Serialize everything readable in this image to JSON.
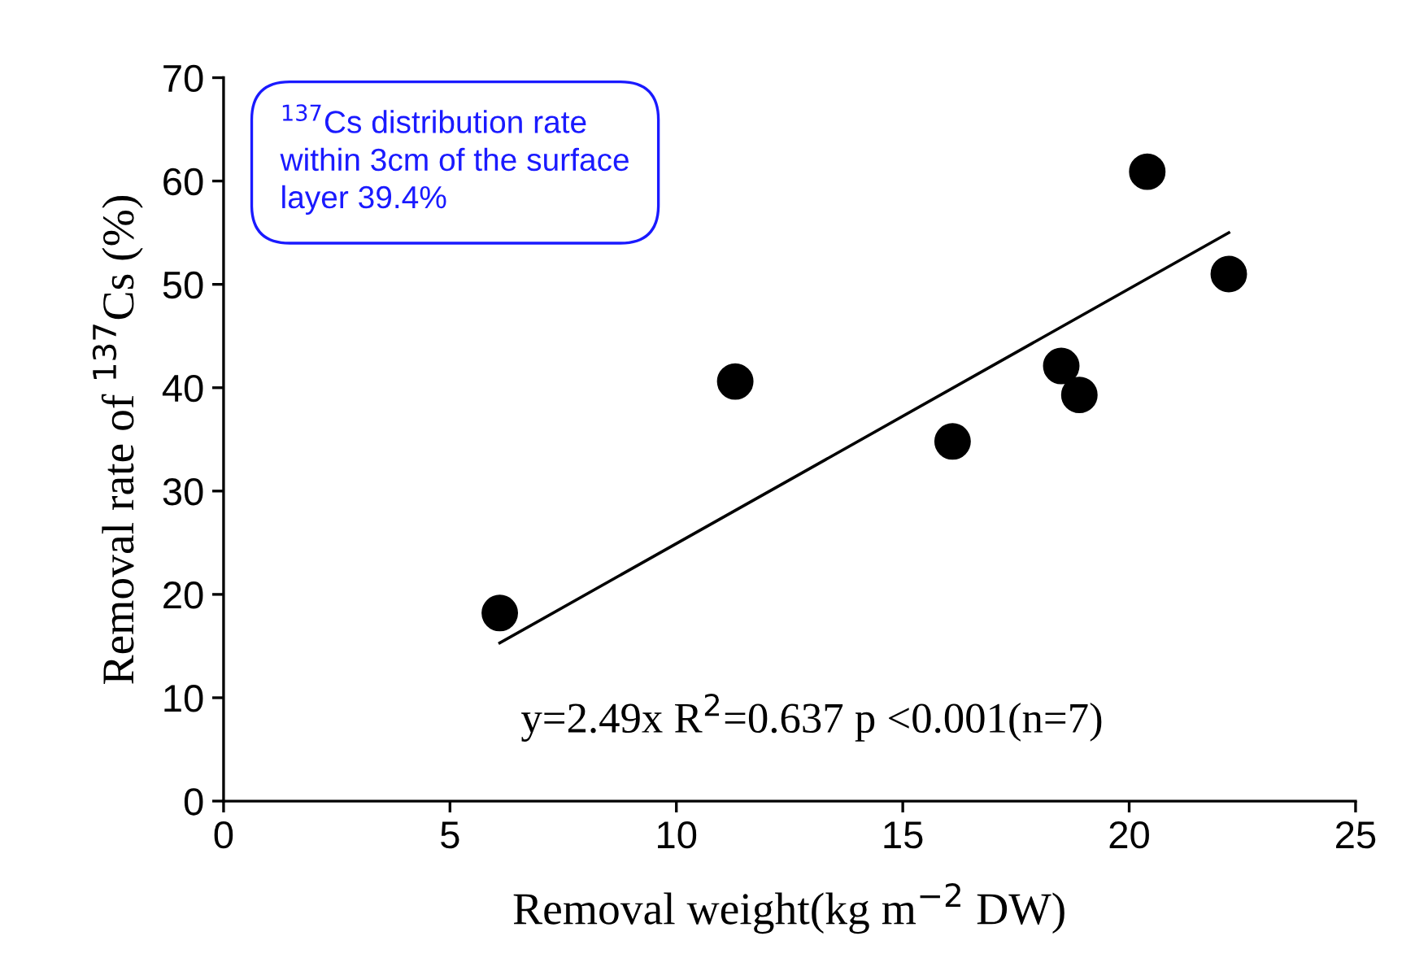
{
  "chart_data": {
    "type": "scatter",
    "xlabel": "Removal weight(kg m$^{−2}$ DW)",
    "ylabel": "Removal rate of $^{137}$Cs (%)",
    "xlim": [
      0,
      25
    ],
    "xticks": [
      0,
      5,
      10,
      15,
      20,
      25
    ],
    "ylim": [
      0,
      70
    ],
    "yticks": [
      0,
      10,
      20,
      30,
      40,
      50,
      60,
      70
    ],
    "grid": false,
    "series": [
      {
        "marker": "circle",
        "color": "#000000",
        "x": [
          6.1,
          11.3,
          16.1,
          18.5,
          18.9,
          20.4,
          22.2
        ],
        "values": [
          18.2,
          40.6,
          34.8,
          42.1,
          39.3,
          60.9,
          51.0
        ]
      },
      {
        "type": "line",
        "color": "#000000",
        "x": [
          6.1,
          22.2
        ],
        "values": [
          15.3,
          55.0
        ]
      }
    ],
    "annotations": [
      "y=2.49x R$^{2}$=0.637 p <0.001(n=7)",
      "$^{137}$Cs distribution rate within 3cm of the surface layer 39.4%"
    ]
  }
}
